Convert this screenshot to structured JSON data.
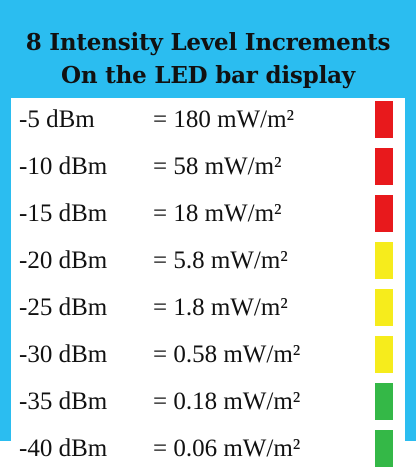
{
  "title": {
    "line1": "8 Intensity Level Increments",
    "line2": "On the LED bar display"
  },
  "colors": {
    "background": "#2bbdf0",
    "red": "#e8191c",
    "yellow": "#f6ec1c",
    "green": "#34b847"
  },
  "rows": [
    {
      "level": "-5 dBm",
      "value": "= 180 mW/m²",
      "led": "red"
    },
    {
      "level": "-10 dBm",
      "value": "= 58 mW/m²",
      "led": "red"
    },
    {
      "level": "-15 dBm",
      "value": "= 18 mW/m²",
      "led": "red"
    },
    {
      "level": "-20 dBm",
      "value": "= 5.8 mW/m²",
      "led": "yellow"
    },
    {
      "level": "-25 dBm",
      "value": "= 1.8 mW/m²",
      "led": "yellow"
    },
    {
      "level": "-30 dBm",
      "value": "= 0.58 mW/m²",
      "led": "yellow"
    },
    {
      "level": "-35 dBm",
      "value": "= 0.18 mW/m²",
      "led": "green"
    },
    {
      "level": "-40 dBm",
      "value": "= 0.06 mW/m²",
      "led": "green"
    }
  ]
}
